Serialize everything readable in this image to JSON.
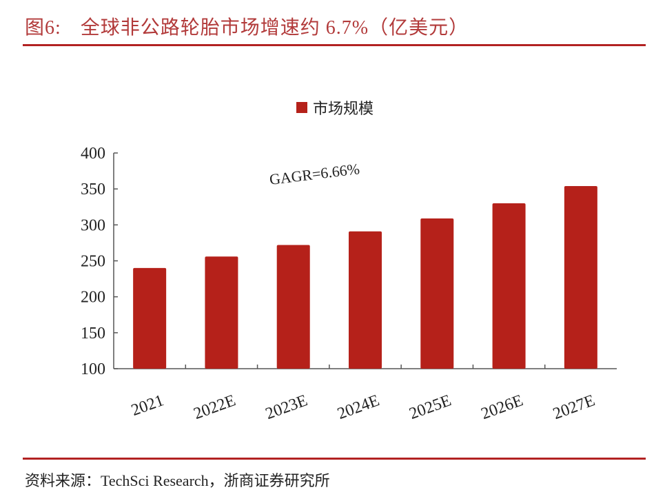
{
  "header": {
    "figure_label": "图6:",
    "title": "全球非公路轮胎市场增速约 6.7%（亿美元）"
  },
  "source": "资料来源：TechSci Research，浙商证券研究所",
  "chart_data": {
    "type": "bar",
    "title": "",
    "xlabel": "",
    "ylabel": "",
    "categories": [
      "2021",
      "2022E",
      "2023E",
      "2024E",
      "2025E",
      "2026E",
      "2027E"
    ],
    "series": [
      {
        "name": "市场规模",
        "values": [
          240,
          256,
          272,
          291,
          309,
          330,
          354
        ],
        "color": "#b5211a"
      }
    ],
    "ylim": [
      100,
      400
    ],
    "yticks": [
      100,
      150,
      200,
      250,
      300,
      350,
      400
    ],
    "legend": "top-center",
    "grid": false,
    "annotation": "GAGR=6.66%"
  }
}
